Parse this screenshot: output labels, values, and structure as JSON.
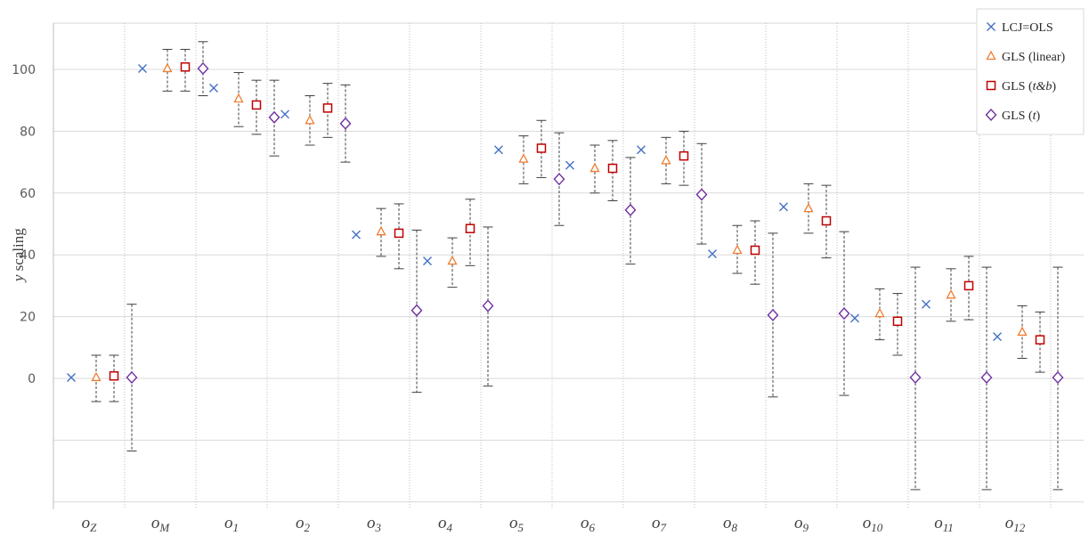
{
  "chart_data": {
    "type": "scatter",
    "ylabel": "y scaling",
    "ylabel_italic_prefix": "y",
    "ylabel_rest": " scaling",
    "ylim": [
      -40,
      115
    ],
    "yticks": [
      0,
      20,
      40,
      60,
      80,
      100
    ],
    "grid": true,
    "legend_position": "top-right",
    "categories": [
      {
        "base": "o",
        "sub": "Z"
      },
      {
        "base": "o",
        "sub": "M"
      },
      {
        "base": "o",
        "sub": "1"
      },
      {
        "base": "o",
        "sub": "2"
      },
      {
        "base": "o",
        "sub": "3"
      },
      {
        "base": "o",
        "sub": "4"
      },
      {
        "base": "o",
        "sub": "5"
      },
      {
        "base": "o",
        "sub": "6"
      },
      {
        "base": "o",
        "sub": "7"
      },
      {
        "base": "o",
        "sub": "8"
      },
      {
        "base": "o",
        "sub": "9"
      },
      {
        "base": "o",
        "sub": "10"
      },
      {
        "base": "o",
        "sub": "11"
      },
      {
        "base": "o",
        "sub": "12"
      }
    ],
    "series": [
      {
        "name": "LCJ=OLS",
        "legend_parts": [
          {
            "text": "LCJ=OLS",
            "italic": false
          }
        ],
        "marker": "x",
        "color": "#4472C4",
        "values": [
          0.3,
          100.3,
          94.0,
          85.5,
          46.5,
          38.0,
          74.0,
          69.0,
          74.0,
          40.3,
          55.5,
          19.5,
          24.0,
          13.5
        ],
        "err_low": null,
        "err_high": null
      },
      {
        "name": "GLS (linear)",
        "legend_parts": [
          {
            "text": "GLS (linear)",
            "italic": false
          }
        ],
        "marker": "triangle",
        "color": "#ED7D31",
        "values": [
          0.3,
          100.3,
          90.5,
          83.5,
          47.5,
          38.0,
          71.0,
          68.0,
          70.5,
          41.5,
          55.0,
          21.0,
          27.0,
          15.0
        ],
        "err_low": [
          -7.5,
          93.0,
          81.5,
          75.5,
          39.5,
          29.5,
          63.0,
          60.0,
          63.0,
          34.0,
          47.0,
          12.5,
          18.5,
          6.5
        ],
        "err_high": [
          7.5,
          106.5,
          99.0,
          91.5,
          55.0,
          45.5,
          78.5,
          75.5,
          78.0,
          49.5,
          63.0,
          29.0,
          35.5,
          23.5
        ]
      },
      {
        "name": "GLS (t&b)",
        "legend_parts": [
          {
            "text": "GLS (",
            "italic": false
          },
          {
            "text": "t&b",
            "italic": true
          },
          {
            "text": ")",
            "italic": false
          }
        ],
        "marker": "square",
        "color": "#C00000",
        "values": [
          0.8,
          100.8,
          88.5,
          87.5,
          47.0,
          48.5,
          74.5,
          68.0,
          72.0,
          41.5,
          51.0,
          18.5,
          30.0,
          12.5
        ],
        "err_low": [
          -7.5,
          93.0,
          79.0,
          78.0,
          35.5,
          36.5,
          65.0,
          57.5,
          62.5,
          30.5,
          39.0,
          7.5,
          19.0,
          2.0
        ],
        "err_high": [
          7.5,
          106.5,
          96.5,
          95.5,
          56.5,
          58.0,
          83.5,
          77.0,
          80.0,
          51.0,
          62.5,
          27.5,
          39.5,
          21.5
        ]
      },
      {
        "name": "GLS (t)",
        "legend_parts": [
          {
            "text": "GLS (",
            "italic": false
          },
          {
            "text": "t",
            "italic": true
          },
          {
            "text": ")",
            "italic": false
          }
        ],
        "marker": "diamond",
        "color": "#7030A0",
        "values": [
          0.3,
          100.3,
          84.5,
          82.5,
          22.0,
          23.5,
          64.5,
          54.5,
          59.5,
          20.5,
          21.0,
          0.3,
          0.3,
          0.3
        ],
        "err_low": [
          -23.5,
          91.5,
          72.0,
          70.0,
          -4.5,
          -2.5,
          49.5,
          37.0,
          43.5,
          -6.0,
          -5.5,
          -36.0,
          -36.0,
          -36.0
        ],
        "err_high": [
          24.0,
          109.0,
          96.5,
          95.0,
          48.0,
          49.0,
          79.5,
          71.5,
          76.0,
          47.0,
          47.5,
          36.0,
          36.0,
          36.0
        ]
      }
    ]
  }
}
